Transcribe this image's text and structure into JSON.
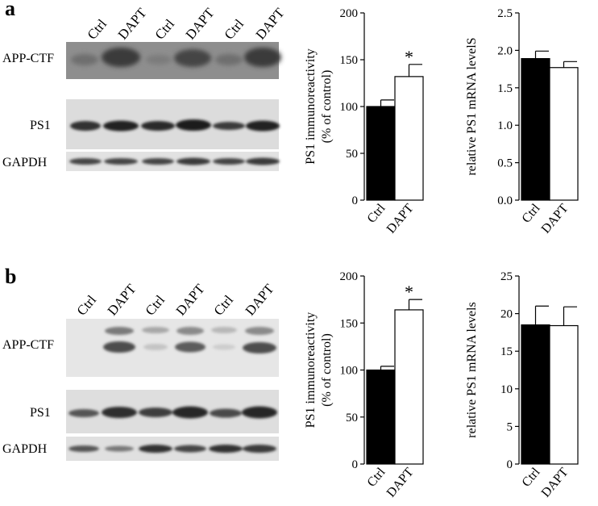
{
  "panels": [
    {
      "letter": "a",
      "lanes": [
        "Ctrl",
        "DAPT",
        "Ctrl",
        "DAPT",
        "Ctrl",
        "DAPT"
      ],
      "blot_rows": [
        "APP-CTF",
        "PS1",
        "GAPDH"
      ]
    },
    {
      "letter": "b",
      "lanes": [
        "Ctrl",
        "DAPT",
        "Ctrl",
        "DAPT",
        "Ctrl",
        "DAPT"
      ],
      "blot_rows": [
        "APP-CTF",
        "PS1",
        "GAPDH"
      ]
    }
  ],
  "chart_data": [
    {
      "type": "bar",
      "categories": [
        "Ctrl",
        "DAPT"
      ],
      "values": [
        100,
        132
      ],
      "errors": [
        7,
        13
      ],
      "fills": [
        "#000000",
        "#ffffff"
      ],
      "significance": [
        "",
        "*"
      ],
      "ylabel": [
        "PS1 immunoreactivity",
        "(% of control)"
      ],
      "ylim": [
        0,
        200
      ],
      "yticks": [
        "0",
        "50",
        "100",
        "150",
        "200"
      ]
    },
    {
      "type": "bar",
      "categories": [
        "Ctrl",
        "DAPT"
      ],
      "values": [
        1.89,
        1.77
      ],
      "errors": [
        0.1,
        0.08
      ],
      "fills": [
        "#000000",
        "#ffffff"
      ],
      "significance": [
        "",
        ""
      ],
      "ylabel": [
        "relative PS1 mRNA levelS"
      ],
      "ylim": [
        0,
        2.5
      ],
      "yticks": [
        "0.0",
        "0.5",
        "1.0",
        "1.5",
        "2.0",
        "2.5"
      ]
    },
    {
      "type": "bar",
      "categories": [
        "Ctrl",
        "DAPT"
      ],
      "values": [
        100,
        164
      ],
      "errors": [
        4,
        11
      ],
      "fills": [
        "#000000",
        "#ffffff"
      ],
      "significance": [
        "",
        "*"
      ],
      "ylabel": [
        "PS1 immunoreactivity",
        "(% of control)"
      ],
      "ylim": [
        0,
        200
      ],
      "yticks": [
        "0",
        "50",
        "100",
        "150",
        "200"
      ]
    },
    {
      "type": "bar",
      "categories": [
        "Ctrl",
        "DAPT"
      ],
      "values": [
        18.5,
        18.4
      ],
      "errors": [
        2.5,
        2.5
      ],
      "fills": [
        "#000000",
        "#ffffff"
      ],
      "significance": [
        "",
        ""
      ],
      "ylabel": [
        "relative PS1 mRNA levels"
      ],
      "ylim": [
        0,
        25
      ],
      "yticks": [
        "0",
        "5",
        "10",
        "15",
        "20",
        "25"
      ]
    }
  ]
}
